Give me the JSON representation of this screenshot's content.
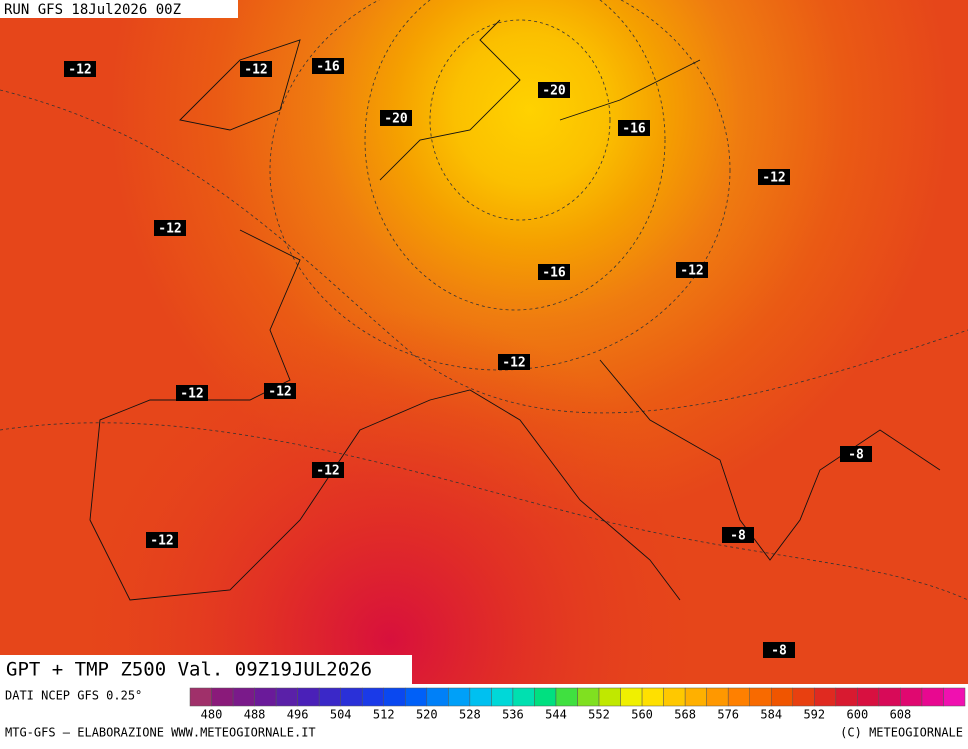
{
  "header": {
    "run": "RUN GFS 18Jul2026 00Z"
  },
  "map": {
    "contour_labels": [
      -12,
      -12,
      -16,
      -20,
      -20,
      -16,
      -12,
      -12,
      -16,
      -12,
      -12,
      -12,
      -12,
      -12,
      -8,
      -8,
      -12,
      -8
    ]
  },
  "title": "GPT + TMP Z500 Val. 09Z19JUL2026",
  "legend": {
    "source": "DATI NCEP GFS 0.25°",
    "ticks": [
      480,
      488,
      496,
      504,
      512,
      520,
      528,
      536,
      544,
      552,
      560,
      568,
      576,
      584,
      592,
      600,
      608
    ]
  },
  "footer": {
    "left": "MTG-GFS – ELABORAZIONE WWW.METEOGIORNALE.IT",
    "right": "(C) METEOGIORNALE"
  }
}
